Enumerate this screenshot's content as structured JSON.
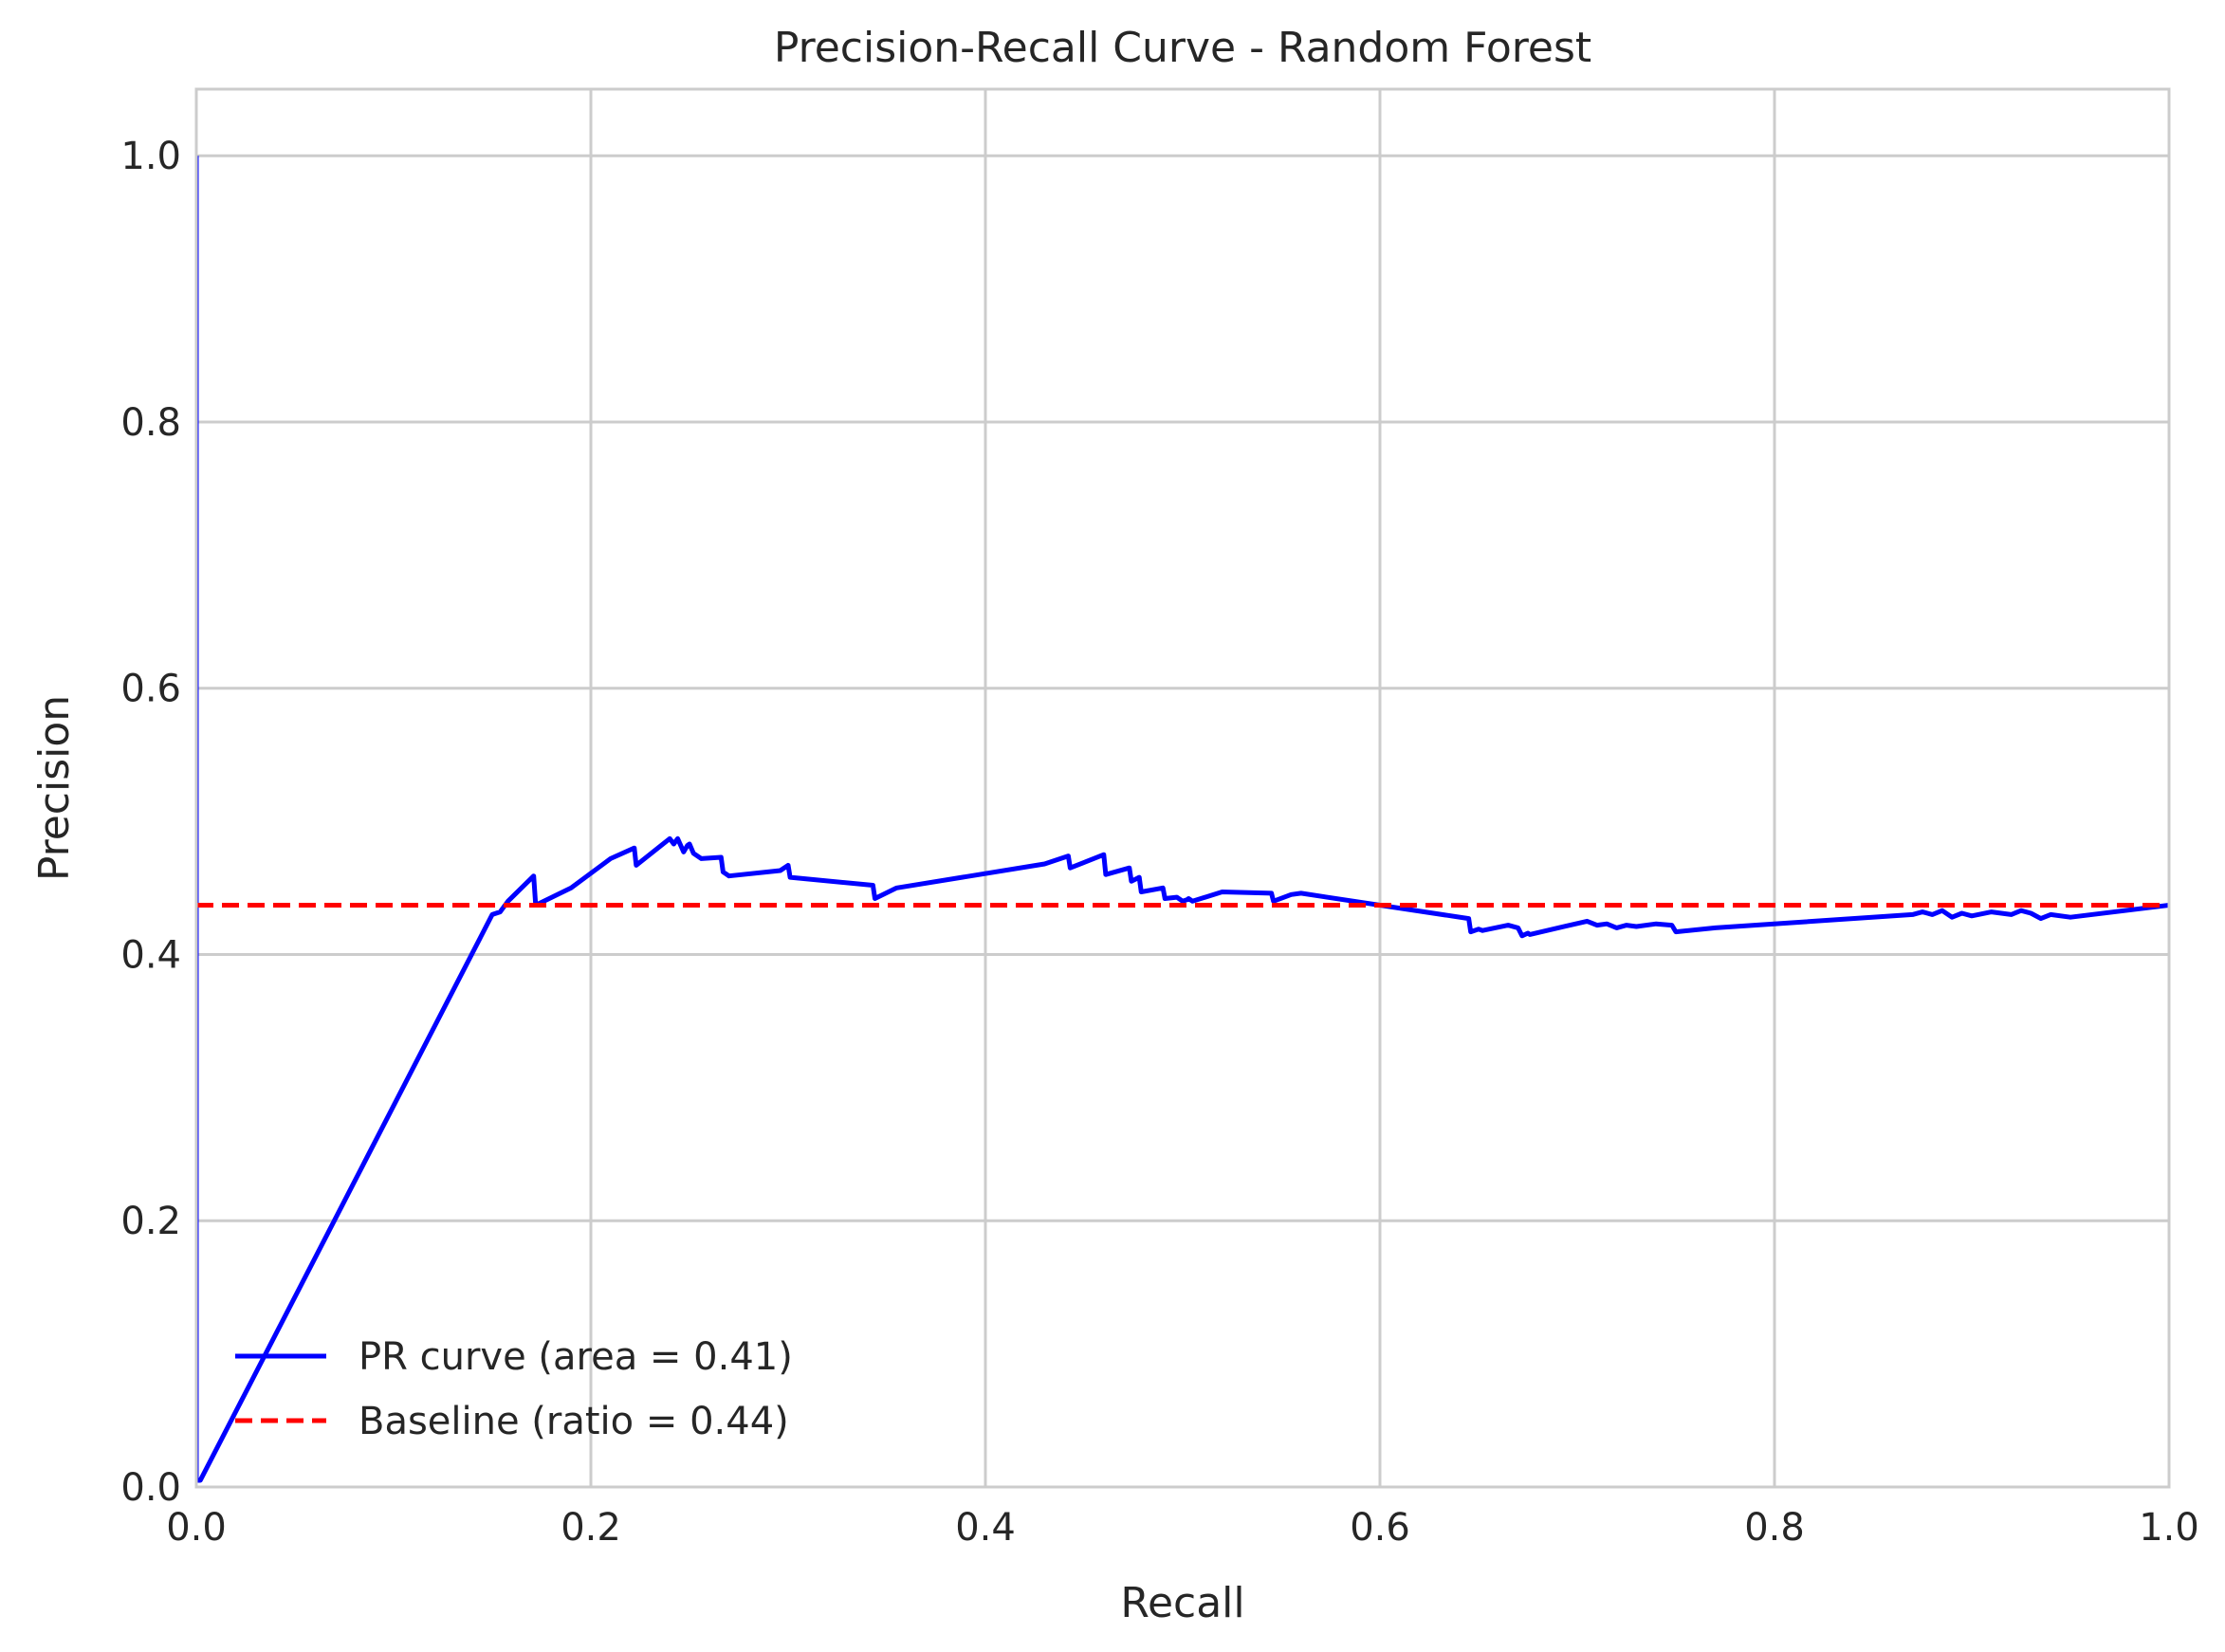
{
  "chart_data": {
    "type": "line",
    "title": "Precision-Recall Curve - Random Forest",
    "xlabel": "Recall",
    "ylabel": "Precision",
    "xlim": [
      0.0,
      1.0
    ],
    "ylim": [
      0.0,
      1.05
    ],
    "xticks": [
      0.0,
      0.2,
      0.4,
      0.6,
      0.8,
      1.0
    ],
    "xtick_labels": [
      "0.0",
      "0.2",
      "0.4",
      "0.6",
      "0.8",
      "1.0"
    ],
    "yticks": [
      0.0,
      0.2,
      0.4,
      0.6,
      0.8,
      1.0
    ],
    "ytick_labels": [
      "0.0",
      "0.2",
      "0.4",
      "0.6",
      "0.8",
      "1.0"
    ],
    "grid": true,
    "legend_position": "lower-left",
    "series": [
      {
        "name": "PR curve (area = 0.41)",
        "color": "#0000ff",
        "style": "solid",
        "x": [
          0.0,
          0.0,
          0.002,
          0.15,
          0.154,
          0.158,
          0.171,
          0.172,
          0.19,
          0.21,
          0.222,
          0.223,
          0.24,
          0.242,
          0.244,
          0.247,
          0.249,
          0.25,
          0.252,
          0.256,
          0.266,
          0.267,
          0.27,
          0.296,
          0.3,
          0.301,
          0.343,
          0.344,
          0.355,
          0.43,
          0.442,
          0.443,
          0.46,
          0.461,
          0.473,
          0.474,
          0.478,
          0.479,
          0.49,
          0.491,
          0.497,
          0.5,
          0.502,
          0.503,
          0.505,
          0.52,
          0.545,
          0.546,
          0.555,
          0.56,
          0.6,
          0.645,
          0.646,
          0.65,
          0.652,
          0.665,
          0.67,
          0.672,
          0.675,
          0.676,
          0.705,
          0.71,
          0.715,
          0.72,
          0.725,
          0.73,
          0.74,
          0.748,
          0.75,
          0.77,
          0.87,
          0.875,
          0.88,
          0.885,
          0.89,
          0.895,
          0.9,
          0.91,
          0.92,
          0.925,
          0.93,
          0.935,
          0.94,
          0.95,
          1.0
        ],
        "y": [
          1.0,
          0.005,
          0.005,
          0.43,
          0.432,
          0.44,
          0.459,
          0.437,
          0.45,
          0.472,
          0.48,
          0.467,
          0.487,
          0.483,
          0.487,
          0.477,
          0.482,
          0.483,
          0.476,
          0.472,
          0.473,
          0.462,
          0.459,
          0.463,
          0.467,
          0.458,
          0.452,
          0.442,
          0.45,
          0.468,
          0.474,
          0.465,
          0.475,
          0.46,
          0.465,
          0.455,
          0.458,
          0.447,
          0.45,
          0.442,
          0.443,
          0.44,
          0.441,
          0.442,
          0.44,
          0.447,
          0.446,
          0.44,
          0.445,
          0.446,
          0.437,
          0.427,
          0.417,
          0.419,
          0.418,
          0.422,
          0.42,
          0.414,
          0.416,
          0.415,
          0.425,
          0.422,
          0.423,
          0.42,
          0.422,
          0.421,
          0.423,
          0.422,
          0.417,
          0.42,
          0.43,
          0.432,
          0.43,
          0.433,
          0.428,
          0.431,
          0.429,
          0.432,
          0.43,
          0.433,
          0.431,
          0.427,
          0.43,
          0.428,
          0.437
        ]
      },
      {
        "name": "Baseline (ratio = 0.44)",
        "color": "#ff0000",
        "style": "dashed",
        "x": [
          0.0,
          1.0
        ],
        "y": [
          0.437,
          0.437
        ]
      }
    ]
  }
}
